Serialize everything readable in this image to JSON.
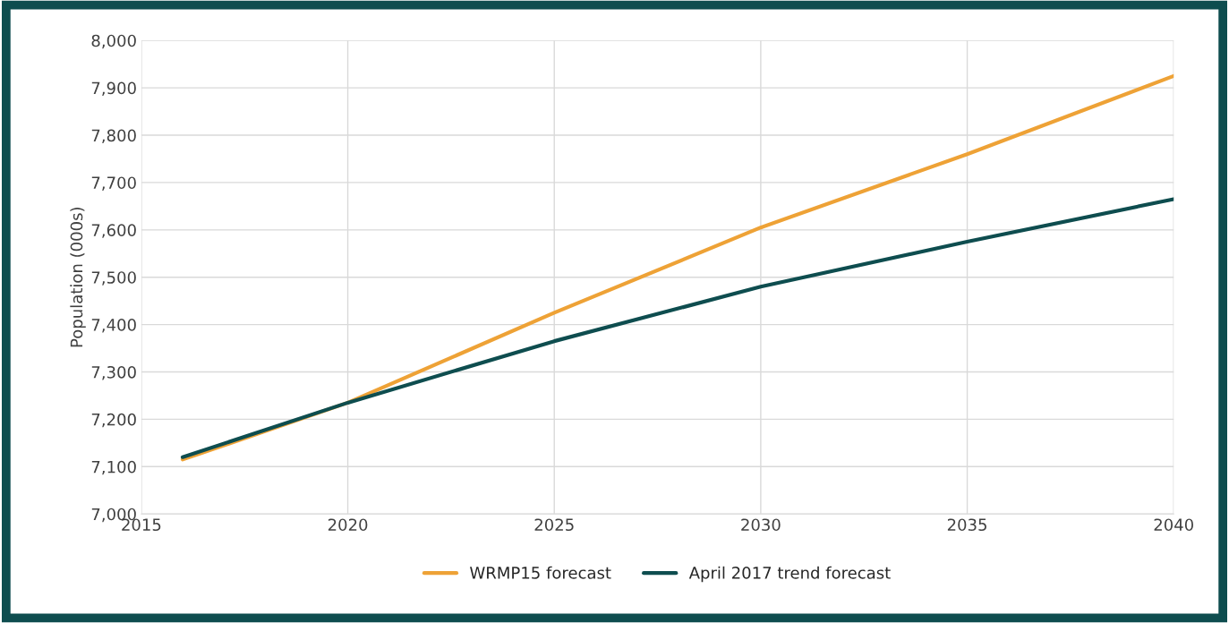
{
  "chart_data": {
    "type": "line",
    "ylabel": "Population (000s)",
    "x": [
      2016,
      2020,
      2025,
      2030,
      2035,
      2040
    ],
    "series": [
      {
        "name": "WRMP15 forecast",
        "color": "#eea236",
        "values": [
          7115,
          7235,
          7425,
          7605,
          7760,
          7925
        ]
      },
      {
        "name": "April 2017 trend forecast",
        "color": "#0e4d4f",
        "values": [
          7120,
          7235,
          7365,
          7480,
          7575,
          7665
        ]
      }
    ],
    "xlim": [
      2015,
      2040
    ],
    "xticks": [
      2015,
      2020,
      2025,
      2030,
      2035,
      2040
    ],
    "ylim": [
      7000,
      8000
    ],
    "yticks": [
      {
        "value": 7000,
        "label": "7,000"
      },
      {
        "value": 7100,
        "label": "7,100"
      },
      {
        "value": 7200,
        "label": "7,200"
      },
      {
        "value": 7300,
        "label": "7,300"
      },
      {
        "value": 7400,
        "label": "7,400"
      },
      {
        "value": 7500,
        "label": "7,500"
      },
      {
        "value": 7600,
        "label": "7,600"
      },
      {
        "value": 7700,
        "label": "7,700"
      },
      {
        "value": 7800,
        "label": "7,800"
      },
      {
        "value": 7900,
        "label": "7,900"
      },
      {
        "value": 8000,
        "label": "8,000"
      }
    ],
    "grid": true,
    "legend": "bottom",
    "marker": "none",
    "line_style": "solid"
  }
}
